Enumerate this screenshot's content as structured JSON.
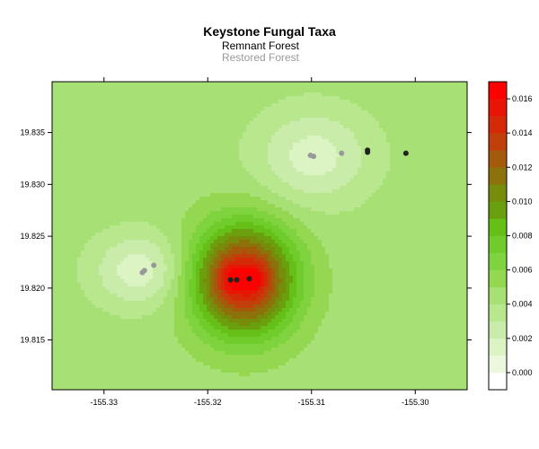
{
  "chart_data": {
    "type": "heatmap",
    "title": "Keystone Fungal Taxa",
    "legend": [
      {
        "name": "Remnant Forest",
        "color": "#222222"
      },
      {
        "name": "Restored Forest",
        "color": "#999999"
      }
    ],
    "xlabel": "",
    "ylabel": "",
    "xlim": [
      -155.335,
      -155.295
    ],
    "ylim": [
      19.8102,
      19.8399
    ],
    "x_ticks": [
      "-155.33",
      "-155.32",
      "-155.31",
      "-155.30"
    ],
    "x_tick_values": [
      -155.33,
      -155.32,
      -155.31,
      -155.3
    ],
    "y_ticks": [
      "19.815",
      "19.820",
      "19.825",
      "19.830",
      "19.835"
    ],
    "y_tick_values": [
      19.815,
      19.82,
      19.825,
      19.83,
      19.835
    ],
    "colorbar": {
      "range": [
        -0.001,
        0.017
      ],
      "tick_labels": [
        "0.000",
        "0.002",
        "0.004",
        "0.006",
        "0.008",
        "0.010",
        "0.012",
        "0.014",
        "0.016"
      ],
      "tick_values": [
        0.0,
        0.002,
        0.004,
        0.006,
        0.008,
        0.01,
        0.012,
        0.014,
        0.016
      ],
      "levels": [
        {
          "range": [
            -0.001,
            0.0
          ],
          "color": "#ffffff"
        },
        {
          "range": [
            0.0,
            0.001
          ],
          "color": "#ecf8de"
        },
        {
          "range": [
            0.001,
            0.002
          ],
          "color": "#dcf3c3"
        },
        {
          "range": [
            0.002,
            0.003
          ],
          "color": "#c9ecab"
        },
        {
          "range": [
            0.003,
            0.004
          ],
          "color": "#b9e78e"
        },
        {
          "range": [
            0.004,
            0.005
          ],
          "color": "#a7e176"
        },
        {
          "range": [
            0.005,
            0.006
          ],
          "color": "#94d851"
        },
        {
          "range": [
            0.006,
            0.007
          ],
          "color": "#7ed33e"
        },
        {
          "range": [
            0.007,
            0.008
          ],
          "color": "#6fcc2b"
        },
        {
          "range": [
            0.008,
            0.009
          ],
          "color": "#65bf16"
        },
        {
          "range": [
            0.009,
            0.01
          ],
          "color": "#6aa00e"
        },
        {
          "range": [
            0.01,
            0.011
          ],
          "color": "#778c0a"
        },
        {
          "range": [
            0.011,
            0.012
          ],
          "color": "#8d720b"
        },
        {
          "range": [
            0.012,
            0.013
          ],
          "color": "#a45a0b"
        },
        {
          "range": [
            0.013,
            0.014
          ],
          "color": "#c03f0a"
        },
        {
          "range": [
            0.014,
            0.015
          ],
          "color": "#d52a08"
        },
        {
          "range": [
            0.015,
            0.016
          ],
          "color": "#e81406"
        },
        {
          "range": [
            0.016,
            0.017
          ],
          "color": "#fd0000"
        }
      ]
    },
    "background_value": 0.0045,
    "surface_peaks": [
      {
        "x": -155.3165,
        "y": 19.8208,
        "value": 0.011,
        "spread_x": 0.0048,
        "spread_y": 0.0052
      },
      {
        "x": -155.3178,
        "y": 19.8209,
        "value": 0.002,
        "spread_x": 0.0012,
        "spread_y": 0.0014
      },
      {
        "x": -155.3155,
        "y": 19.8209,
        "value": 0.002,
        "spread_x": 0.0012,
        "spread_y": 0.0014
      }
    ],
    "surface_dips": [
      {
        "x": -155.3265,
        "y": 19.8217,
        "value": -0.0032,
        "spread_x": 0.0045,
        "spread_y": 0.0035
      },
      {
        "x": -155.3098,
        "y": 19.8327,
        "value": -0.003,
        "spread_x": 0.0055,
        "spread_y": 0.0045
      }
    ],
    "series": [
      {
        "name": "Remnant Forest",
        "color": "#222222",
        "points": [
          {
            "x": -155.3178,
            "y": 19.8208
          },
          {
            "x": -155.3172,
            "y": 19.8208
          },
          {
            "x": -155.316,
            "y": 19.8209
          },
          {
            "x": -155.3046,
            "y": 19.8333
          },
          {
            "x": -155.3046,
            "y": 19.8331
          },
          {
            "x": -155.3009,
            "y": 19.833
          }
        ]
      },
      {
        "name": "Restored Forest",
        "color": "#999999",
        "points": [
          {
            "x": -155.3263,
            "y": 19.8215
          },
          {
            "x": -155.3261,
            "y": 19.8217
          },
          {
            "x": -155.3252,
            "y": 19.8222
          },
          {
            "x": -155.3101,
            "y": 19.8328
          },
          {
            "x": -155.3098,
            "y": 19.8327
          },
          {
            "x": -155.3071,
            "y": 19.833
          }
        ]
      }
    ]
  }
}
